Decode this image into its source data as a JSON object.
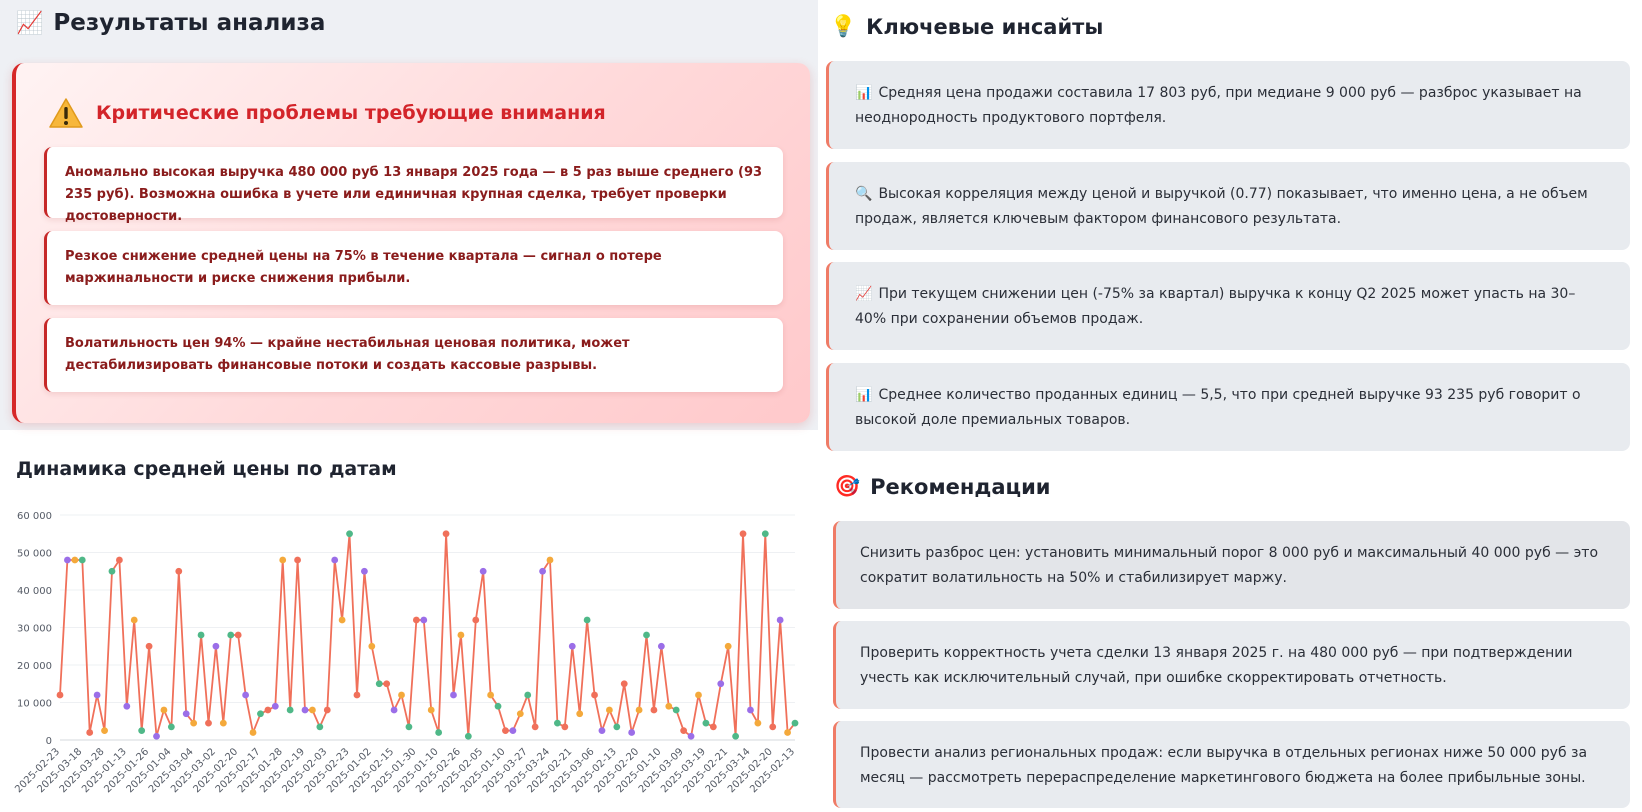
{
  "analysis": {
    "emoji": "📈",
    "title": "Результаты анализа",
    "critical_title": "Критические проблемы требующие внимания",
    "critical_items": [
      "Аномально высокая выручка 480 000 руб 13 января 2025 года — в 5 раз выше среднего (93 235 руб). Возможна ошибка в учете или единичная крупная сделка, требует проверки достоверности.",
      "Резкое снижение средней цены на 75% в течение квартала — сигнал о потере маржинальности и риске снижения прибыли.",
      "Волатильность цен 94% — крайне нестабильная ценовая политика, может дестабилизировать финансовые потоки и создать кассовые разрывы."
    ]
  },
  "insights": {
    "emoji": "💡",
    "title": "Ключевые инсайты",
    "items": [
      {
        "emoji": "📊",
        "text": "Средняя цена продажи составила 17 803 руб, при медиане 9 000 руб — разброс указывает на неоднородность продуктового портфеля."
      },
      {
        "emoji": "🔍",
        "text": "Высокая корреляция между ценой и выручкой (0.77) показывает, что именно цена, а не объем продаж, является ключевым фактором финансового результата."
      },
      {
        "emoji": "📈",
        "text": "При текущем снижении цен (-75% за квартал) выручка к концу Q2 2025 может упасть на 30–40% при сохранении объемов продаж."
      },
      {
        "emoji": "📊",
        "text": "Среднее количество проданных единиц — 5,5, что при средней выручке 93 235 руб говорит о высокой доле премиальных товаров."
      }
    ]
  },
  "recommendations": {
    "emoji": "🎯",
    "title": "Рекомендации",
    "items": [
      "Снизить разброс цен: установить минимальный порог 8 000 руб и максимальный 40 000 руб — это сократит волатильность на 50% и стабилизирует маржу.",
      "Проверить корректность учета сделки 13 января 2025 г. на 480 000 руб — при подтверждении учесть как исключительный случай, при ошибке скорректировать отчетность.",
      "Провести анализ региональных продаж: если выручка в отдельных регионах ниже 50 000 руб за месяц — рассмотреть перераспределение маркетингового бюджета на более прибыльные зоны."
    ]
  },
  "chart_data": {
    "type": "line",
    "title": "Динамика средней цены по датам",
    "y_ticks": [
      "0",
      "10 000",
      "20 000",
      "30 000",
      "40 000",
      "50 000",
      "60 000"
    ],
    "ylim": [
      0,
      60000
    ],
    "x_tick_labels": [
      "2025-02-23",
      "2025-03-18",
      "2025-03-28",
      "2025-01-13",
      "2025-01-26",
      "2025-01-04",
      "2025-03-04",
      "2025-03-02",
      "2025-02-20",
      "2025-02-17",
      "2025-01-28",
      "2025-02-19",
      "2025-02-03",
      "2025-02-23",
      "2025-01-02",
      "2025-02-15",
      "2025-01-30",
      "2025-01-10",
      "2025-02-26",
      "2025-02-05",
      "2025-01-10",
      "2025-03-27",
      "2025-03-24",
      "2025-02-21",
      "2025-03-06",
      "2025-02-13",
      "2025-02-20",
      "2025-01-10",
      "2025-03-09",
      "2025-03-19",
      "2025-02-21",
      "2025-03-14",
      "2025-02-20",
      "2025-02-13"
    ],
    "line_color": "#f0705a",
    "marker_colors": [
      "#f0705a",
      "#9b6ee8",
      "#f4a93b",
      "#4fb888"
    ],
    "values": [
      12000,
      48000,
      48000,
      48000,
      2000,
      12000,
      2500,
      45000,
      48000,
      9000,
      32000,
      2500,
      25000,
      1000,
      8000,
      3500,
      45000,
      7000,
      4500,
      28000,
      4500,
      25000,
      4500,
      28000,
      28000,
      12000,
      2000,
      7000,
      8000,
      9000,
      48000,
      8000,
      48000,
      8000,
      8000,
      3500,
      8000,
      48000,
      32000,
      55000,
      12000,
      45000,
      25000,
      15000,
      15000,
      8000,
      12000,
      3500,
      32000,
      32000,
      8000,
      2000,
      55000,
      12000,
      28000,
      1000,
      32000,
      45000,
      12000,
      9000,
      2500,
      2500,
      7000,
      12000,
      3500,
      45000,
      48000,
      4500,
      3500,
      25000,
      7000,
      32000,
      12000,
      2500,
      8000,
      3500,
      15000,
      2000,
      8000,
      28000,
      8000,
      25000,
      9000,
      8000,
      2500,
      1000,
      12000,
      4500,
      3500,
      15000,
      25000,
      1000,
      55000,
      8000,
      4500,
      55000,
      3500,
      32000,
      2000,
      4500
    ]
  }
}
